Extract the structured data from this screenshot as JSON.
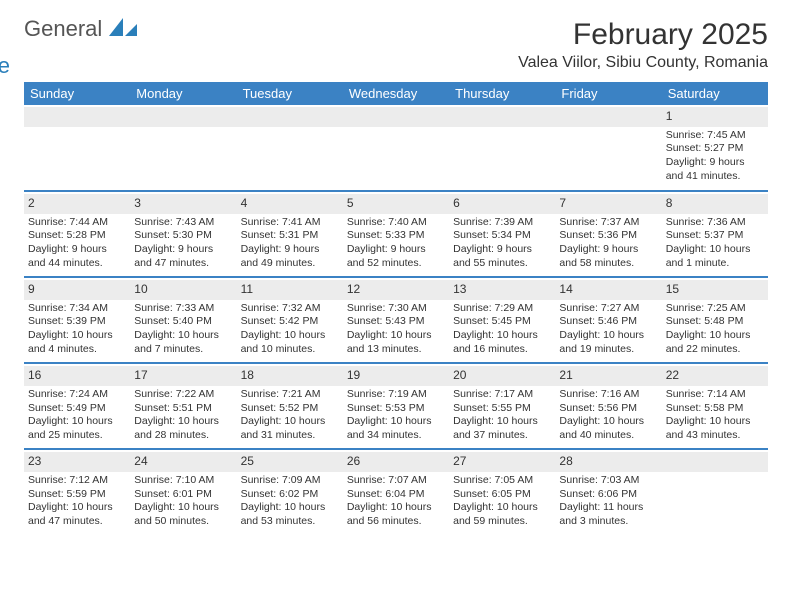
{
  "logo": {
    "word1": "General",
    "word2": "Blue"
  },
  "header": {
    "month_title": "February 2025",
    "location": "Valea Viilor, Sibiu County, Romania"
  },
  "colors": {
    "header_bg": "#3b82c4",
    "header_fg": "#ffffff",
    "row_border": "#2a7fba",
    "daynum_bg": "#ececec",
    "text": "#333333",
    "logo_blue": "#2a7fba"
  },
  "daysOfWeek": [
    "Sunday",
    "Monday",
    "Tuesday",
    "Wednesday",
    "Thursday",
    "Friday",
    "Saturday"
  ],
  "weeks": [
    [
      null,
      null,
      null,
      null,
      null,
      null,
      {
        "n": "1",
        "sunrise": "Sunrise: 7:45 AM",
        "sunset": "Sunset: 5:27 PM",
        "day1": "Daylight: 9 hours",
        "day2": "and 41 minutes."
      }
    ],
    [
      {
        "n": "2",
        "sunrise": "Sunrise: 7:44 AM",
        "sunset": "Sunset: 5:28 PM",
        "day1": "Daylight: 9 hours",
        "day2": "and 44 minutes."
      },
      {
        "n": "3",
        "sunrise": "Sunrise: 7:43 AM",
        "sunset": "Sunset: 5:30 PM",
        "day1": "Daylight: 9 hours",
        "day2": "and 47 minutes."
      },
      {
        "n": "4",
        "sunrise": "Sunrise: 7:41 AM",
        "sunset": "Sunset: 5:31 PM",
        "day1": "Daylight: 9 hours",
        "day2": "and 49 minutes."
      },
      {
        "n": "5",
        "sunrise": "Sunrise: 7:40 AM",
        "sunset": "Sunset: 5:33 PM",
        "day1": "Daylight: 9 hours",
        "day2": "and 52 minutes."
      },
      {
        "n": "6",
        "sunrise": "Sunrise: 7:39 AM",
        "sunset": "Sunset: 5:34 PM",
        "day1": "Daylight: 9 hours",
        "day2": "and 55 minutes."
      },
      {
        "n": "7",
        "sunrise": "Sunrise: 7:37 AM",
        "sunset": "Sunset: 5:36 PM",
        "day1": "Daylight: 9 hours",
        "day2": "and 58 minutes."
      },
      {
        "n": "8",
        "sunrise": "Sunrise: 7:36 AM",
        "sunset": "Sunset: 5:37 PM",
        "day1": "Daylight: 10 hours",
        "day2": "and 1 minute."
      }
    ],
    [
      {
        "n": "9",
        "sunrise": "Sunrise: 7:34 AM",
        "sunset": "Sunset: 5:39 PM",
        "day1": "Daylight: 10 hours",
        "day2": "and 4 minutes."
      },
      {
        "n": "10",
        "sunrise": "Sunrise: 7:33 AM",
        "sunset": "Sunset: 5:40 PM",
        "day1": "Daylight: 10 hours",
        "day2": "and 7 minutes."
      },
      {
        "n": "11",
        "sunrise": "Sunrise: 7:32 AM",
        "sunset": "Sunset: 5:42 PM",
        "day1": "Daylight: 10 hours",
        "day2": "and 10 minutes."
      },
      {
        "n": "12",
        "sunrise": "Sunrise: 7:30 AM",
        "sunset": "Sunset: 5:43 PM",
        "day1": "Daylight: 10 hours",
        "day2": "and 13 minutes."
      },
      {
        "n": "13",
        "sunrise": "Sunrise: 7:29 AM",
        "sunset": "Sunset: 5:45 PM",
        "day1": "Daylight: 10 hours",
        "day2": "and 16 minutes."
      },
      {
        "n": "14",
        "sunrise": "Sunrise: 7:27 AM",
        "sunset": "Sunset: 5:46 PM",
        "day1": "Daylight: 10 hours",
        "day2": "and 19 minutes."
      },
      {
        "n": "15",
        "sunrise": "Sunrise: 7:25 AM",
        "sunset": "Sunset: 5:48 PM",
        "day1": "Daylight: 10 hours",
        "day2": "and 22 minutes."
      }
    ],
    [
      {
        "n": "16",
        "sunrise": "Sunrise: 7:24 AM",
        "sunset": "Sunset: 5:49 PM",
        "day1": "Daylight: 10 hours",
        "day2": "and 25 minutes."
      },
      {
        "n": "17",
        "sunrise": "Sunrise: 7:22 AM",
        "sunset": "Sunset: 5:51 PM",
        "day1": "Daylight: 10 hours",
        "day2": "and 28 minutes."
      },
      {
        "n": "18",
        "sunrise": "Sunrise: 7:21 AM",
        "sunset": "Sunset: 5:52 PM",
        "day1": "Daylight: 10 hours",
        "day2": "and 31 minutes."
      },
      {
        "n": "19",
        "sunrise": "Sunrise: 7:19 AM",
        "sunset": "Sunset: 5:53 PM",
        "day1": "Daylight: 10 hours",
        "day2": "and 34 minutes."
      },
      {
        "n": "20",
        "sunrise": "Sunrise: 7:17 AM",
        "sunset": "Sunset: 5:55 PM",
        "day1": "Daylight: 10 hours",
        "day2": "and 37 minutes."
      },
      {
        "n": "21",
        "sunrise": "Sunrise: 7:16 AM",
        "sunset": "Sunset: 5:56 PM",
        "day1": "Daylight: 10 hours",
        "day2": "and 40 minutes."
      },
      {
        "n": "22",
        "sunrise": "Sunrise: 7:14 AM",
        "sunset": "Sunset: 5:58 PM",
        "day1": "Daylight: 10 hours",
        "day2": "and 43 minutes."
      }
    ],
    [
      {
        "n": "23",
        "sunrise": "Sunrise: 7:12 AM",
        "sunset": "Sunset: 5:59 PM",
        "day1": "Daylight: 10 hours",
        "day2": "and 47 minutes."
      },
      {
        "n": "24",
        "sunrise": "Sunrise: 7:10 AM",
        "sunset": "Sunset: 6:01 PM",
        "day1": "Daylight: 10 hours",
        "day2": "and 50 minutes."
      },
      {
        "n": "25",
        "sunrise": "Sunrise: 7:09 AM",
        "sunset": "Sunset: 6:02 PM",
        "day1": "Daylight: 10 hours",
        "day2": "and 53 minutes."
      },
      {
        "n": "26",
        "sunrise": "Sunrise: 7:07 AM",
        "sunset": "Sunset: 6:04 PM",
        "day1": "Daylight: 10 hours",
        "day2": "and 56 minutes."
      },
      {
        "n": "27",
        "sunrise": "Sunrise: 7:05 AM",
        "sunset": "Sunset: 6:05 PM",
        "day1": "Daylight: 10 hours",
        "day2": "and 59 minutes."
      },
      {
        "n": "28",
        "sunrise": "Sunrise: 7:03 AM",
        "sunset": "Sunset: 6:06 PM",
        "day1": "Daylight: 11 hours",
        "day2": "and 3 minutes."
      },
      null
    ]
  ]
}
